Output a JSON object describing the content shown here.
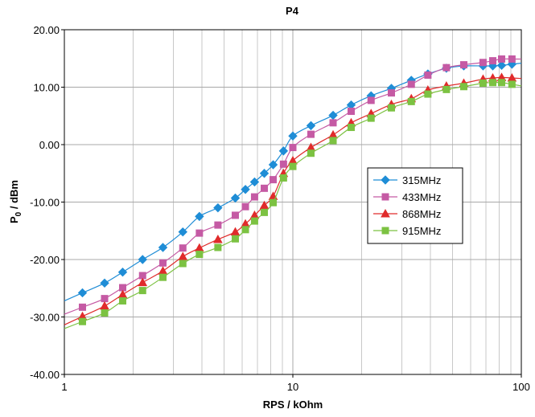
{
  "chart_data": {
    "type": "line",
    "title": "P4",
    "xlabel": "RPS / kOhm",
    "ylabel_main": "P",
    "ylabel_sub": "0",
    "ylabel_rest": " / dBm",
    "xscale": "log",
    "xlim": [
      1,
      100
    ],
    "ylim": [
      -40,
      20
    ],
    "xticks": [
      {
        "v": 1,
        "label": "1"
      },
      {
        "v": 10,
        "label": "10"
      },
      {
        "v": 100,
        "label": "100"
      }
    ],
    "yticks": [
      {
        "v": 20,
        "label": "20.00"
      },
      {
        "v": 10,
        "label": "10.00"
      },
      {
        "v": 0,
        "label": "0.00"
      },
      {
        "v": -10,
        "label": "-10.00"
      },
      {
        "v": -20,
        "label": "-20.00"
      },
      {
        "v": -30,
        "label": "-30.00"
      },
      {
        "v": -40,
        "label": "-40.00"
      }
    ],
    "grid": true,
    "legend_position": "right-center",
    "x": [
      1.2,
      1.5,
      1.8,
      2.2,
      2.7,
      3.3,
      3.9,
      4.7,
      5.6,
      6.2,
      6.8,
      7.5,
      8.2,
      9.1,
      10,
      12,
      15,
      18,
      22,
      27,
      33,
      39,
      47,
      56,
      68,
      75,
      82,
      91
    ],
    "series": [
      {
        "name": "315MHz",
        "color": "#1f8dd6",
        "marker": "diamond",
        "values": [
          -25.8,
          -24.1,
          -22.2,
          -20.0,
          -17.9,
          -15.2,
          -12.5,
          -11.0,
          -9.3,
          -7.8,
          -6.5,
          -5.0,
          -3.5,
          -1.1,
          1.5,
          3.3,
          5.1,
          6.9,
          8.5,
          9.8,
          11.2,
          12.3,
          13.3,
          13.7,
          13.7,
          13.7,
          13.8,
          14.0
        ]
      },
      {
        "name": "433MHz",
        "color": "#c55aa4",
        "marker": "square",
        "values": [
          -28.3,
          -26.8,
          -24.9,
          -22.8,
          -20.6,
          -18.0,
          -15.4,
          -14.0,
          -12.3,
          -10.8,
          -9.1,
          -7.6,
          -6.1,
          -3.4,
          -0.5,
          1.8,
          3.8,
          5.8,
          7.7,
          9.0,
          10.5,
          12.1,
          13.4,
          13.9,
          14.3,
          14.6,
          14.9,
          14.9
        ]
      },
      {
        "name": "868MHz",
        "color": "#e02b2b",
        "marker": "triangle",
        "values": [
          -29.9,
          -28.1,
          -26.1,
          -24.0,
          -22.0,
          -19.5,
          -18.0,
          -16.5,
          -15.2,
          -13.8,
          -12.3,
          -10.6,
          -9.0,
          -5.0,
          -2.8,
          -0.5,
          1.7,
          3.8,
          5.4,
          7.0,
          8.0,
          9.5,
          10.2,
          10.7,
          11.4,
          11.6,
          11.7,
          11.6
        ]
      },
      {
        "name": "915MHz",
        "color": "#7cc242",
        "marker": "square",
        "values": [
          -30.8,
          -29.3,
          -27.2,
          -25.4,
          -23.1,
          -20.7,
          -19.1,
          -17.9,
          -16.4,
          -14.8,
          -13.3,
          -11.8,
          -10.1,
          -5.8,
          -3.8,
          -1.5,
          0.7,
          3.0,
          4.6,
          6.4,
          7.5,
          8.8,
          9.6,
          10.1,
          10.7,
          10.8,
          10.8,
          10.5
        ]
      }
    ]
  }
}
